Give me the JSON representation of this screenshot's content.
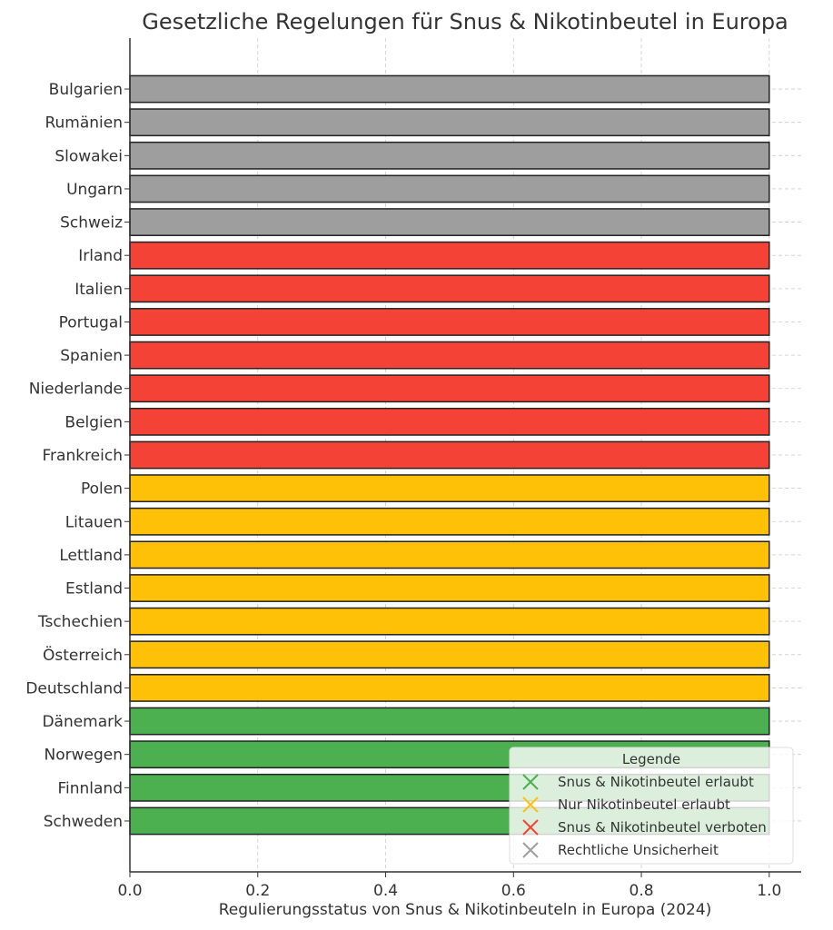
{
  "chart_data": {
    "type": "bar",
    "orientation": "horizontal",
    "title": "Gesetzliche Regelungen für Snus & Nikotinbeutel in Europa",
    "xlabel": "Regulierungsstatus von Snus & Nikotinbeuteln in Europa (2024)",
    "ylabel": "",
    "xlim": [
      0,
      1.05
    ],
    "xticks": [
      "0.0",
      "0.2",
      "0.4",
      "0.6",
      "0.8",
      "1.0"
    ],
    "grid": true,
    "legend_placement": "bottom-right",
    "legend": {
      "title": "Legende",
      "entries": [
        {
          "label": "Snus & Nikotinbeutel erlaubt",
          "color": "#4caf50"
        },
        {
          "label": "Nur Nikotinbeutel erlaubt",
          "color": "#ffc107"
        },
        {
          "label": "Snus & Nikotinbeutel verboten",
          "color": "#f44336"
        },
        {
          "label": "Rechtliche Unsicherheit",
          "color": "#9e9e9e"
        }
      ]
    },
    "categories": [
      "Bulgarien",
      "Rumänien",
      "Slowakei",
      "Ungarn",
      "Schweiz",
      "Irland",
      "Italien",
      "Portugal",
      "Spanien",
      "Niederlande",
      "Belgien",
      "Frankreich",
      "Polen",
      "Litauen",
      "Lettland",
      "Estland",
      "Tschechien",
      "Österreich",
      "Deutschland",
      "Dänemark",
      "Norwegen",
      "Finnland",
      "Schweden"
    ],
    "values": [
      1,
      1,
      1,
      1,
      1,
      1,
      1,
      1,
      1,
      1,
      1,
      1,
      1,
      1,
      1,
      1,
      1,
      1,
      1,
      1,
      1,
      1,
      1
    ],
    "status": [
      3,
      3,
      3,
      3,
      3,
      2,
      2,
      2,
      2,
      2,
      2,
      2,
      1,
      1,
      1,
      1,
      1,
      1,
      1,
      0,
      0,
      0,
      0
    ]
  }
}
